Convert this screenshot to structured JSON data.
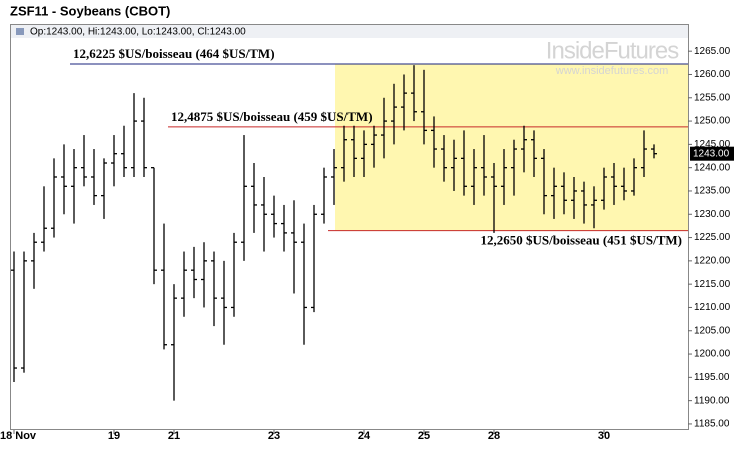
{
  "chart_data": {
    "type": "ohlc",
    "title": "ZSF11 - Soybeans (CBOT)",
    "info": "Op:1243.00, Hi:1243.00, Lo:1243.00, Cl:1243.00",
    "watermark": {
      "brand": "InsideFutures",
      "url": "www.insidefutures.com"
    },
    "categories": [
      "18 Nov",
      null,
      null,
      null,
      null,
      null,
      null,
      null,
      null,
      null,
      "19",
      null,
      null,
      null,
      null,
      null,
      "21",
      null,
      null,
      null,
      null,
      null,
      null,
      null,
      null,
      null,
      "23",
      null,
      null,
      null,
      null,
      null,
      null,
      null,
      null,
      "24",
      null,
      null,
      null,
      null,
      null,
      "25",
      null,
      null,
      null,
      null,
      null,
      null,
      "28",
      null,
      null,
      null,
      null,
      null,
      null,
      null,
      null,
      null,
      null,
      "30",
      null,
      null,
      null,
      null,
      null
    ],
    "series": [
      {
        "color": "#000000",
        "open": [
          1218,
          1197,
          1220,
          1224,
          1227,
          1238,
          1236,
          1240,
          1238,
          1234,
          1241,
          1243,
          1240,
          1250,
          1240,
          1218,
          1202,
          1212,
          1218,
          1216,
          1220,
          1212,
          1210,
          1224,
          1236,
          1232,
          1230,
          1228,
          1226,
          1224,
          1210,
          1230,
          1238,
          1240,
          1246,
          1242,
          1245,
          1247,
          1250,
          1253,
          1256,
          1252,
          1248,
          1244,
          1240,
          1242,
          1236,
          1240,
          1238,
          1236,
          1240,
          1244,
          1246,
          1242,
          1234,
          1236,
          1233,
          1235,
          1232,
          1233,
          1238,
          1236,
          1235,
          1240,
          1244
        ],
        "high": [
          1222,
          1222,
          1226,
          1236,
          1242,
          1245,
          1244,
          1247,
          1244,
          1242,
          1247,
          1249,
          1256,
          1255,
          1240,
          1228,
          1215,
          1222,
          1223,
          1224,
          1222,
          1220,
          1226,
          1247,
          1241,
          1238,
          1234,
          1232,
          1233,
          1228,
          1232,
          1240,
          1244,
          1249,
          1249,
          1248,
          1249,
          1255,
          1258,
          1260,
          1262,
          1261,
          1251,
          1247,
          1246,
          1248,
          1244,
          1247,
          1241,
          1244,
          1246,
          1249,
          1248,
          1244,
          1240,
          1239,
          1238,
          1237,
          1236,
          1240,
          1241,
          1240,
          1242,
          1248,
          1245
        ],
        "low": [
          1194,
          1196,
          1214,
          1222,
          1225,
          1230,
          1228,
          1236,
          1232,
          1229,
          1236,
          1238,
          1238,
          1238,
          1215,
          1201,
          1190,
          1208,
          1212,
          1210,
          1206,
          1202,
          1208,
          1220,
          1226,
          1222,
          1225,
          1222,
          1213,
          1202,
          1209,
          1228,
          1232,
          1237,
          1238,
          1238,
          1240,
          1242,
          1245,
          1248,
          1250,
          1245,
          1240,
          1237,
          1235,
          1234,
          1232,
          1234,
          1226,
          1232,
          1234,
          1239,
          1238,
          1230,
          1229,
          1230,
          1229,
          1228,
          1227,
          1231,
          1232,
          1233,
          1234,
          1238,
          1242
        ],
        "close": [
          1197,
          1220,
          1224,
          1227,
          1238,
          1236,
          1240,
          1238,
          1234,
          1241,
          1243,
          1240,
          1250,
          1240,
          1218,
          1202,
          1212,
          1218,
          1216,
          1220,
          1212,
          1210,
          1224,
          1236,
          1232,
          1230,
          1228,
          1226,
          1224,
          1210,
          1230,
          1238,
          1240,
          1246,
          1242,
          1245,
          1247,
          1250,
          1253,
          1256,
          1252,
          1248,
          1244,
          1240,
          1242,
          1236,
          1240,
          1238,
          1236,
          1240,
          1244,
          1246,
          1242,
          1234,
          1236,
          1233,
          1235,
          1232,
          1233,
          1238,
          1236,
          1235,
          1240,
          1244,
          1243
        ]
      }
    ],
    "annotations": [
      {
        "text": "12,6225 $US/boisseau (464 $US/TM)",
        "value": 1262.25,
        "color": "#1a237e"
      },
      {
        "text": "12,4875 $US/boisseau (459 $US/TM)",
        "value": 1248.75,
        "color": "#c62828"
      },
      {
        "text": "12,2650 $US/boisseau (451 $US/TM)",
        "value": 1226.5,
        "color": "#c62828"
      }
    ],
    "highlight_color": "#fff7b0",
    "last_price": {
      "value": 1243,
      "label": "1243.00"
    },
    "ylim": [
      1183.7,
      1267.4
    ],
    "yticks": [
      {
        "value": 1185,
        "label": "1185.00"
      },
      {
        "value": 1190,
        "label": "1190.00"
      },
      {
        "value": 1195,
        "label": "1195.00"
      },
      {
        "value": 1200,
        "label": "1200.00"
      },
      {
        "value": 1205,
        "label": "1205.00"
      },
      {
        "value": 1210,
        "label": "1210.00"
      },
      {
        "value": 1215,
        "label": "1215.00"
      },
      {
        "value": 1220,
        "label": "1220.00"
      },
      {
        "value": 1225,
        "label": "1225.00"
      },
      {
        "value": 1230,
        "label": "1230.00"
      },
      {
        "value": 1235,
        "label": "1235.00"
      },
      {
        "value": 1240,
        "label": "1240.00"
      },
      {
        "value": 1245,
        "label": "1245.00"
      },
      {
        "value": 1250,
        "label": "1250.00"
      },
      {
        "value": 1255,
        "label": "1255.00"
      },
      {
        "value": 1260,
        "label": "1260.00"
      },
      {
        "value": 1265,
        "label": "1265.00"
      }
    ]
  }
}
